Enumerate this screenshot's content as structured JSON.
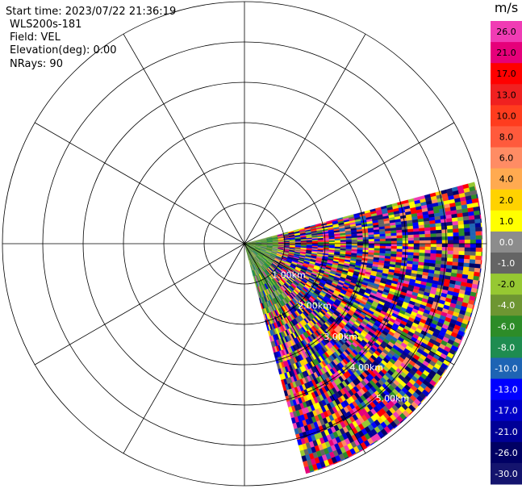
{
  "header": {
    "start_time": "Start time: 2023/07/22 21:36:19",
    "instrument": "WLS200s-181",
    "field": "Field: VEL",
    "elevation": "Elevation(deg): 0.00",
    "nrays": "NRays: 90"
  },
  "range_labels": [
    "1.00km",
    "2.00km",
    "3.00km",
    "4.00km",
    "5.00km"
  ],
  "colorbar": {
    "unit": "m/s",
    "ticks": [
      "26.0",
      "21.0",
      "17.0",
      "13.0",
      "10.0",
      "8.0",
      "6.0",
      "4.0",
      "2.0",
      "1.0",
      "0.0",
      "-1.0",
      "-2.0",
      "-4.0",
      "-6.0",
      "-8.0",
      "-10.0",
      "-13.0",
      "-17.0",
      "-21.0",
      "-26.0",
      "-30.0"
    ],
    "colors": [
      "#f03cb4",
      "#e6007a",
      "#ff0000",
      "#f02020",
      "#ff3c1e",
      "#ff5a3c",
      "#ff8c64",
      "#ffaa50",
      "#ffd200",
      "#ffff00",
      "#8c8c8c",
      "#646464",
      "#96c832",
      "#6e9632",
      "#2d8c28",
      "#1e8c50",
      "#1e64b4",
      "#0000ff",
      "#0000c8",
      "#000096",
      "#000064",
      "#14146e"
    ]
  },
  "scan": {
    "start_azimuth_deg": 75,
    "end_azimuth_deg": 165,
    "max_range_km": 5.9
  }
}
